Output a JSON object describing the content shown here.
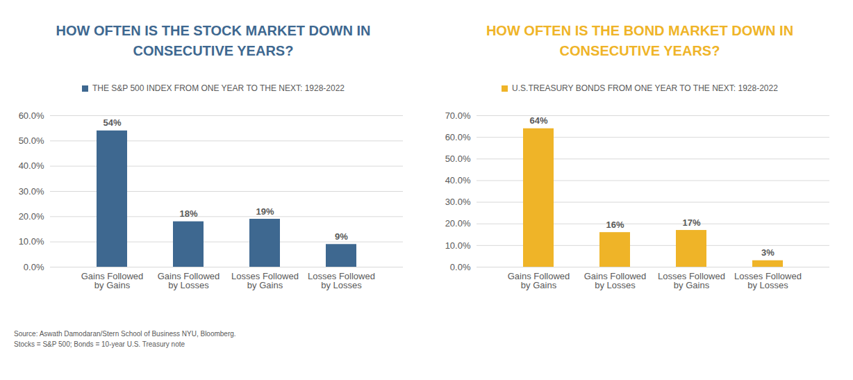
{
  "chart_data": [
    {
      "type": "bar",
      "title": "HOW OFTEN IS THE STOCK MARKET DOWN IN CONSECUTIVE YEARS?",
      "categories": [
        "Gains Followed by Gains",
        "Gains Followed by Losses",
        "Losses Followed by Gains",
        "Losses Followed by Losses"
      ],
      "series": [
        {
          "name": "THE S&P 500 INDEX FROM ONE YEAR TO THE NEXT: 1928-2022",
          "color": "#3e6890",
          "values": [
            54,
            18,
            19,
            9
          ],
          "value_labels": [
            "54%",
            "18%",
            "19%",
            "9%"
          ]
        }
      ],
      "ylim": [
        0,
        60
      ],
      "yticks": [
        {
          "value": 0,
          "label": "0.0%"
        },
        {
          "value": 10,
          "label": "10.0%"
        },
        {
          "value": 20,
          "label": "20.0%"
        },
        {
          "value": 30,
          "label": "30.0%"
        },
        {
          "value": 40,
          "label": "40.0%"
        },
        {
          "value": 50,
          "label": "50.0%"
        },
        {
          "value": 60,
          "label": "60.0%"
        }
      ],
      "grid": true,
      "legend": "top",
      "data_labels": true
    },
    {
      "type": "bar",
      "title": "HOW OFTEN IS THE BOND MARKET DOWN IN CONSECUTIVE YEARS?",
      "categories": [
        "Gains Followed by Gains",
        "Gains Followed by Losses",
        "Losses Followed by Gains",
        "Losses Followed by Losses"
      ],
      "series": [
        {
          "name": "U.S.TREASURY BONDS FROM ONE YEAR TO THE NEXT: 1928-2022",
          "color": "#efb428",
          "values": [
            64,
            16,
            17,
            3
          ],
          "value_labels": [
            "64%",
            "16%",
            "17%",
            "3%"
          ]
        }
      ],
      "ylim": [
        0,
        70
      ],
      "yticks": [
        {
          "value": 0,
          "label": "0.0%"
        },
        {
          "value": 10,
          "label": "10.0%"
        },
        {
          "value": 20,
          "label": "20.0%"
        },
        {
          "value": 30,
          "label": "30.0%"
        },
        {
          "value": 40,
          "label": "40.0%"
        },
        {
          "value": 50,
          "label": "50.0%"
        },
        {
          "value": 60,
          "label": "60.0%"
        },
        {
          "value": 70,
          "label": "70.0%"
        }
      ],
      "grid": true,
      "legend": "top",
      "data_labels": true
    }
  ],
  "notes": [
    "Source: Aswath Damodaran/Stern School of Business NYU, Bloomberg.",
    "Stocks = S&P 500; Bonds = 10-year U.S. Treasury note"
  ]
}
